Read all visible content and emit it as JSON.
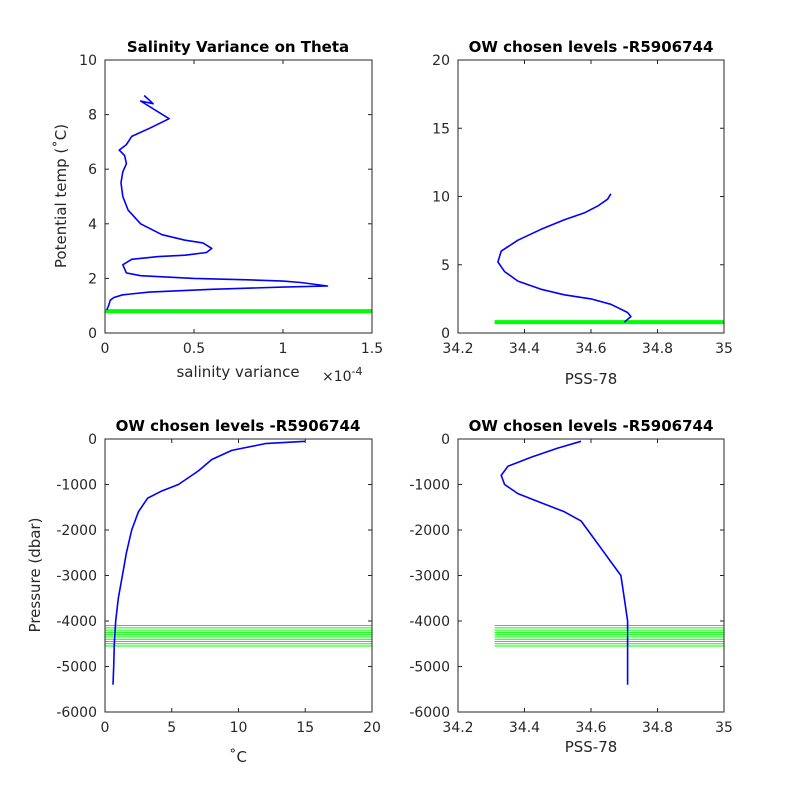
{
  "chart_data": [
    {
      "type": "line",
      "title": "Salinity Variance on Theta",
      "xlabel": "salinity variance",
      "x_exponent_label": "×10",
      "x_exponent": "-4",
      "ylabel": "Potential temp (˚C)",
      "xlim": [
        0,
        1.5
      ],
      "ylim": [
        0,
        10
      ],
      "xticks": [
        0,
        0.5,
        1,
        1.5
      ],
      "xtick_labels": [
        "0",
        "0.5",
        "1",
        "1.5"
      ],
      "yticks": [
        0,
        2,
        4,
        6,
        8,
        10
      ],
      "ytick_labels": [
        "0",
        "2",
        "4",
        "6",
        "8",
        "10"
      ],
      "series": [
        {
          "color": "#0000ff",
          "x": [
            0.22,
            0.27,
            0.2,
            0.36,
            0.25,
            0.15,
            0.12,
            0.08,
            0.11,
            0.12,
            0.1,
            0.09,
            0.1,
            0.13,
            0.2,
            0.32,
            0.45,
            0.55,
            0.6,
            0.57,
            0.45,
            0.3,
            0.15,
            0.1,
            0.12,
            0.2,
            0.5,
            0.8,
            1.0,
            1.1,
            1.25,
            1.0,
            0.6,
            0.25,
            0.1,
            0.05,
            0.03,
            0.02,
            0.01
          ],
          "y": [
            8.7,
            8.4,
            8.5,
            7.85,
            7.5,
            7.2,
            6.9,
            6.7,
            6.5,
            6.2,
            5.9,
            5.5,
            5.0,
            4.5,
            4.0,
            3.6,
            3.4,
            3.3,
            3.1,
            2.95,
            2.85,
            2.8,
            2.7,
            2.5,
            2.2,
            2.1,
            2.0,
            1.95,
            1.9,
            1.85,
            1.72,
            1.68,
            1.6,
            1.5,
            1.4,
            1.3,
            1.2,
            1.0,
            0.85
          ]
        }
      ],
      "reference_lines": [
        {
          "color": "#00ff00",
          "y": 0.8,
          "x_from": 0,
          "x_to": 1.5
        }
      ]
    },
    {
      "type": "line",
      "title": "OW chosen levels -R5906744",
      "xlabel": "PSS-78",
      "ylabel": "",
      "xlim": [
        34.2,
        35
      ],
      "ylim": [
        0,
        20
      ],
      "xticks": [
        34.2,
        34.4,
        34.6,
        34.8,
        35
      ],
      "xtick_labels": [
        "34.2",
        "34.4",
        "34.6",
        "34.8",
        "35"
      ],
      "yticks": [
        0,
        5,
        10,
        15,
        20
      ],
      "ytick_labels": [
        "0",
        "5",
        "10",
        "15",
        "20"
      ],
      "series": [
        {
          "color": "#0000ff",
          "x": [
            34.7,
            34.72,
            34.71,
            34.66,
            34.6,
            34.52,
            34.45,
            34.38,
            34.34,
            34.32,
            34.33,
            34.38,
            34.45,
            34.52,
            34.58,
            34.62,
            34.65,
            34.66
          ],
          "y": [
            0.8,
            1.2,
            1.5,
            2.1,
            2.5,
            2.8,
            3.2,
            3.8,
            4.5,
            5.2,
            6.0,
            6.8,
            7.6,
            8.3,
            8.8,
            9.3,
            9.8,
            10.2
          ]
        }
      ],
      "reference_lines": [
        {
          "color": "#00ff00",
          "y": 0.8,
          "x_from": 34.31,
          "x_to": 35
        }
      ]
    },
    {
      "type": "line",
      "title": "OW chosen levels -R5906744",
      "xlabel": "˚C",
      "ylabel": "Pressure (dbar)",
      "xlim": [
        0,
        20
      ],
      "ylim": [
        -6000,
        0
      ],
      "xticks": [
        0,
        5,
        10,
        15,
        20
      ],
      "xtick_labels": [
        "0",
        "5",
        "10",
        "15",
        "20"
      ],
      "yticks": [
        -6000,
        -5000,
        -4000,
        -3000,
        -2000,
        -1000,
        0
      ],
      "ytick_labels": [
        "-6000",
        "-5000",
        "-4000",
        "-3000",
        "-2000",
        "-1000",
        "0"
      ],
      "series": [
        {
          "color": "#0000ff",
          "x": [
            0.6,
            0.65,
            0.7,
            0.8,
            1.0,
            1.3,
            1.6,
            2.0,
            2.5,
            3.2,
            4.2,
            5.5,
            7.0,
            8.0,
            9.5,
            12.0,
            15.0
          ],
          "y": [
            -5400,
            -5000,
            -4500,
            -4000,
            -3500,
            -3000,
            -2500,
            -2000,
            -1600,
            -1300,
            -1150,
            -1000,
            -700,
            -450,
            -250,
            -100,
            -50
          ]
        }
      ],
      "reference_lines": [
        {
          "color": "#00ff00",
          "y_from": -4550,
          "y_to": -4100,
          "x_from": 0,
          "x_to": 20
        }
      ]
    },
    {
      "type": "line",
      "title": "OW chosen levels -R5906744",
      "xlabel": "PSS-78",
      "ylabel": "",
      "xlim": [
        34.2,
        35
      ],
      "ylim": [
        -6000,
        0
      ],
      "xticks": [
        34.2,
        34.4,
        34.6,
        34.8,
        35
      ],
      "xtick_labels": [
        "34.2",
        "34.4",
        "34.6",
        "34.8",
        "35"
      ],
      "yticks": [
        -6000,
        -5000,
        -4000,
        -3000,
        -2000,
        -1000,
        0
      ],
      "ytick_labels": [
        "-6000",
        "-5000",
        "-4000",
        "-3000",
        "-2000",
        "-1000",
        "0"
      ],
      "series": [
        {
          "color": "#0000ff",
          "x": [
            34.71,
            34.71,
            34.71,
            34.71,
            34.7,
            34.69,
            34.66,
            34.63,
            34.6,
            34.57,
            34.52,
            34.45,
            34.38,
            34.34,
            34.33,
            34.35,
            34.42,
            34.5,
            34.57
          ],
          "y": [
            -5400,
            -5000,
            -4500,
            -4000,
            -3500,
            -3000,
            -2700,
            -2400,
            -2100,
            -1800,
            -1600,
            -1400,
            -1200,
            -1000,
            -800,
            -600,
            -400,
            -200,
            -50
          ]
        }
      ],
      "reference_lines": [
        {
          "color": "#00ff00",
          "y_from": -4550,
          "y_to": -4100,
          "x_from": 34.31,
          "x_to": 35
        }
      ]
    }
  ]
}
